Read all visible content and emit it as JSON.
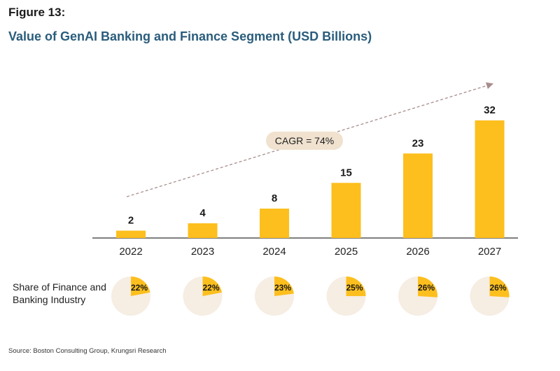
{
  "figure_label": "Figure 13:",
  "title": "Value of GenAI Banking and Finance Segment (USD Billions)",
  "share_label": "Share of Finance and Banking Industry",
  "source": "Source: Boston Consulting Group, Krungsri Research",
  "colors": {
    "bar": "#fdbf1e",
    "pie_bg": "#f6ede3",
    "arrow": "#a88c8c",
    "cagr_bg": "#f0e2cf",
    "axis": "#333333"
  },
  "chart_data": {
    "type": "bar",
    "title": "Value of GenAI Banking and Finance Segment (USD Billions)",
    "categories": [
      "2022",
      "2023",
      "2024",
      "2025",
      "2026",
      "2027"
    ],
    "values": [
      2,
      4,
      8,
      15,
      23,
      32
    ],
    "data_labels": [
      "2",
      "4",
      "8",
      "15",
      "23",
      "32"
    ],
    "ylim": [
      0,
      32
    ],
    "grid": false,
    "annotation": "CAGR = 74%",
    "shares": [
      22,
      22,
      23,
      25,
      26,
      26
    ],
    "share_labels": [
      "22%",
      "22%",
      "23%",
      "25%",
      "26%",
      "26%"
    ]
  }
}
